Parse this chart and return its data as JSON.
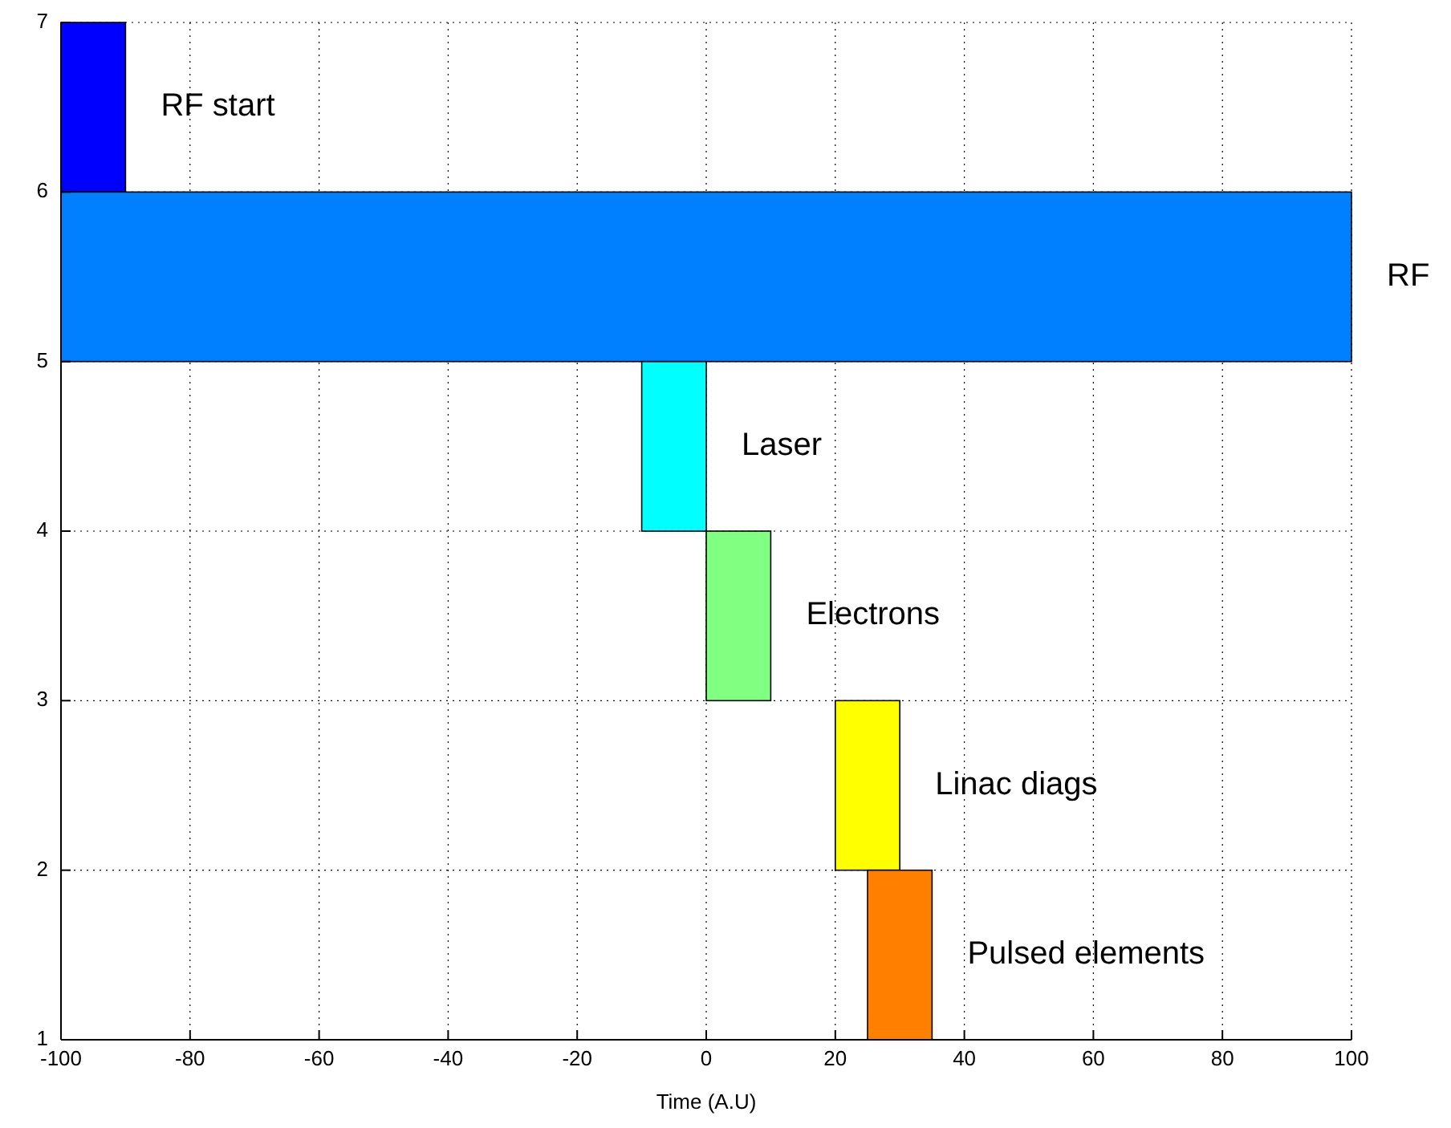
{
  "chart_data": {
    "type": "bar",
    "orientation": "horizontal",
    "xlabel": "Time (A.U)",
    "x": [
      6.5,
      5.5,
      4.5,
      3.5,
      2.5,
      1.5
    ],
    "series": [
      {
        "name": "RF start",
        "color": "#0000ff",
        "values": [
          10,
          null,
          null,
          null,
          null,
          null
        ],
        "base": [
          -100,
          null,
          null,
          null,
          null,
          null
        ]
      },
      {
        "name": "RF",
        "color": "#0080ff",
        "values": [
          null,
          200,
          null,
          null,
          null,
          null
        ],
        "base": [
          null,
          -100,
          null,
          null,
          null,
          null
        ]
      },
      {
        "name": "Laser",
        "color": "#00ffff",
        "values": [
          null,
          null,
          10,
          null,
          null,
          null
        ],
        "base": [
          null,
          null,
          -10,
          null,
          null,
          null
        ]
      },
      {
        "name": "Electrons",
        "color": "#80ff80",
        "values": [
          null,
          null,
          null,
          10,
          null,
          null
        ],
        "base": [
          null,
          null,
          null,
          0,
          null,
          null
        ]
      },
      {
        "name": "Linac diags",
        "color": "#ffff00",
        "values": [
          null,
          null,
          null,
          null,
          10,
          null
        ],
        "base": [
          null,
          null,
          null,
          null,
          20,
          null
        ]
      },
      {
        "name": "Pulsed elements",
        "color": "#ff8000",
        "values": [
          null,
          null,
          null,
          null,
          null,
          10
        ],
        "base": [
          null,
          null,
          null,
          null,
          null,
          25
        ]
      }
    ],
    "xlim": [
      -100,
      100
    ],
    "xticks": [
      -100,
      -80,
      -60,
      -40,
      -20,
      0,
      20,
      40,
      60,
      80,
      100
    ],
    "ylim": [
      1,
      7
    ],
    "yticks": [
      1,
      2,
      3,
      4,
      5,
      6,
      7
    ],
    "grid": true
  }
}
